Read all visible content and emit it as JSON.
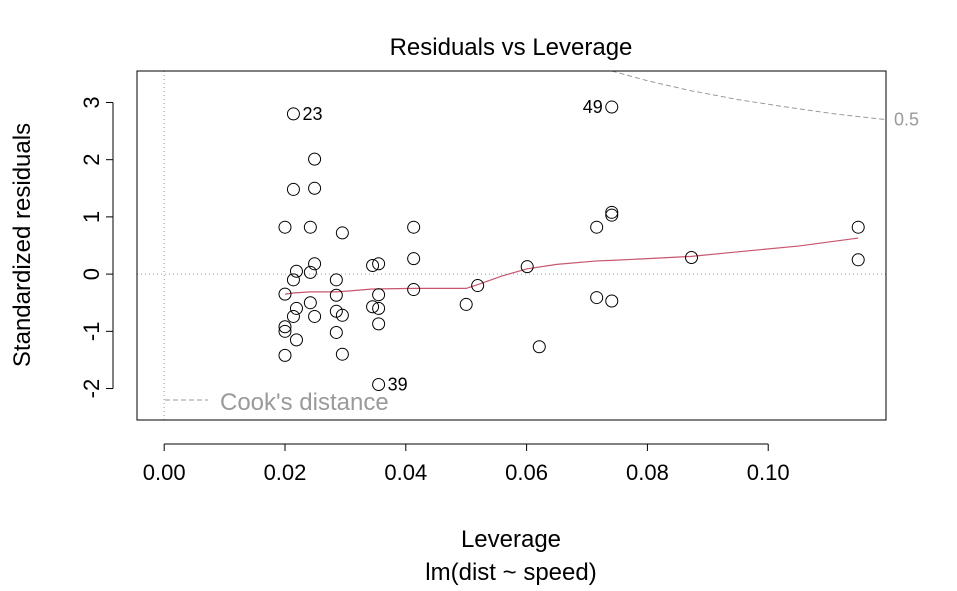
{
  "chart_data": {
    "type": "scatter",
    "title": "Residuals vs Leverage",
    "xlabel": "Leverage",
    "sublabel": "lm(dist ~ speed)",
    "ylabel": "Standardized residuals",
    "xlim": [
      -0.0045,
      0.1195
    ],
    "ylim": [
      -2.55,
      3.55
    ],
    "x_ticks": [
      0.0,
      0.02,
      0.04,
      0.06,
      0.08,
      0.1
    ],
    "x_tick_labels": [
      "0.00",
      "0.02",
      "0.04",
      "0.06",
      "0.08",
      "0.10"
    ],
    "y_ticks": [
      -2,
      -1,
      0,
      1,
      2,
      3
    ],
    "y_tick_labels": [
      "-2",
      "-1",
      "0",
      "1",
      "2",
      "3"
    ],
    "grid": false,
    "reference_lines": {
      "x": 0,
      "y": 0
    },
    "points": [
      {
        "x": 0.0214,
        "y": 2.8
      },
      {
        "x": 0.0249,
        "y": 2.01
      },
      {
        "x": 0.0214,
        "y": 1.48
      },
      {
        "x": 0.0249,
        "y": 1.5
      },
      {
        "x": 0.02,
        "y": 0.82
      },
      {
        "x": 0.0242,
        "y": 0.82
      },
      {
        "x": 0.0295,
        "y": 0.72
      },
      {
        "x": 0.0249,
        "y": 0.18
      },
      {
        "x": 0.0219,
        "y": 0.05
      },
      {
        "x": 0.0242,
        "y": 0.03
      },
      {
        "x": 0.0214,
        "y": -0.1
      },
      {
        "x": 0.0285,
        "y": -0.1
      },
      {
        "x": 0.02,
        "y": -0.35
      },
      {
        "x": 0.0285,
        "y": -0.37
      },
      {
        "x": 0.0242,
        "y": -0.5
      },
      {
        "x": 0.0219,
        "y": -0.6
      },
      {
        "x": 0.0285,
        "y": -0.65
      },
      {
        "x": 0.0214,
        "y": -0.74
      },
      {
        "x": 0.0249,
        "y": -0.74
      },
      {
        "x": 0.0295,
        "y": -0.72
      },
      {
        "x": 0.02,
        "y": -0.92
      },
      {
        "x": 0.02,
        "y": -1.0
      },
      {
        "x": 0.0285,
        "y": -1.02
      },
      {
        "x": 0.0219,
        "y": -1.15
      },
      {
        "x": 0.02,
        "y": -1.42
      },
      {
        "x": 0.0295,
        "y": -1.4
      },
      {
        "x": 0.0345,
        "y": 0.15
      },
      {
        "x": 0.0355,
        "y": 0.18
      },
      {
        "x": 0.0345,
        "y": -0.57
      },
      {
        "x": 0.0355,
        "y": -0.36
      },
      {
        "x": 0.0355,
        "y": -0.6
      },
      {
        "x": 0.0355,
        "y": -0.87
      },
      {
        "x": 0.0355,
        "y": -1.93
      },
      {
        "x": 0.0413,
        "y": 0.82
      },
      {
        "x": 0.0413,
        "y": 0.27
      },
      {
        "x": 0.0413,
        "y": -0.27
      },
      {
        "x": 0.05,
        "y": -0.53
      },
      {
        "x": 0.0519,
        "y": -0.2
      },
      {
        "x": 0.0601,
        "y": 0.13
      },
      {
        "x": 0.0621,
        "y": -1.27
      },
      {
        "x": 0.0716,
        "y": 0.82
      },
      {
        "x": 0.0716,
        "y": -0.41
      },
      {
        "x": 0.0741,
        "y": 2.92
      },
      {
        "x": 0.0741,
        "y": 1.08
      },
      {
        "x": 0.0741,
        "y": 1.03
      },
      {
        "x": 0.0741,
        "y": -0.47
      },
      {
        "x": 0.0873,
        "y": 0.29
      },
      {
        "x": 0.1149,
        "y": 0.82
      },
      {
        "x": 0.1149,
        "y": 0.25
      }
    ],
    "point_labels": [
      {
        "text": "23",
        "x": 0.0214,
        "y": 2.8
      },
      {
        "text": "49",
        "x": 0.0741,
        "y": 2.92
      },
      {
        "text": "39",
        "x": 0.0355,
        "y": -1.93
      }
    ],
    "smoother": {
      "color": "#c8566d",
      "x": [
        0.02,
        0.0214,
        0.0242,
        0.0285,
        0.03,
        0.0345,
        0.0413,
        0.05,
        0.052,
        0.056,
        0.06,
        0.065,
        0.0716,
        0.0741,
        0.08,
        0.0873,
        0.095,
        0.105,
        0.1149
      ],
      "y": [
        -0.35,
        -0.33,
        -0.31,
        -0.31,
        -0.3,
        -0.26,
        -0.25,
        -0.25,
        -0.18,
        -0.03,
        0.09,
        0.17,
        0.23,
        0.24,
        0.27,
        0.31,
        0.39,
        0.49,
        0.63
      ]
    },
    "cooks_contour": {
      "level_label": "0.5",
      "color": "#9a9a9a",
      "x": [
        0.0741,
        0.08,
        0.087,
        0.095,
        0.103,
        0.111,
        0.1195
      ],
      "y": [
        3.55,
        3.38,
        3.21,
        3.05,
        2.92,
        2.8,
        2.7
      ]
    },
    "legend": {
      "text": "Cook's distance",
      "position": "bottom-left",
      "color": "#9a9a9a"
    }
  }
}
